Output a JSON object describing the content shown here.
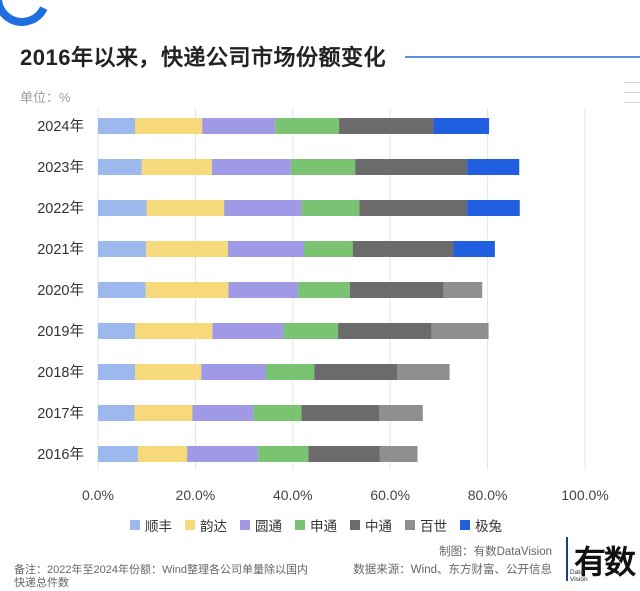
{
  "header": {
    "title": "2016年以来，快递公司市场份额变化",
    "unit": "单位：%"
  },
  "footer": {
    "note": "备注：2022年至2024年份额：Wind整理各公司单量除以国内快递总件数",
    "credit": "制图：有数DataVision",
    "source": "数据来源：Wind、东方财富、公开信息"
  },
  "logo": {
    "text": "有数",
    "sub_line1": "Data",
    "sub_line2": "Vision"
  },
  "colors": {
    "顺丰": "#9db8ec",
    "韵达": "#f5d97a",
    "圆通": "#a09ae6",
    "申通": "#79c372",
    "中通": "#6b6b6b",
    "百世": "#8f8f8f",
    "极兔": "#1f5fe0",
    "title_line": "#5d8fe0",
    "corner_arc": "#1f6fe0"
  },
  "chart_data": {
    "type": "bar",
    "orientation": "horizontal",
    "stacked": true,
    "title": "2016年以来，快递公司市场份额变化",
    "unit": "单位：%",
    "categories": [
      "2024年",
      "2023年",
      "2022年",
      "2021年",
      "2020年",
      "2019年",
      "2018年",
      "2017年",
      "2016年"
    ],
    "xlim": [
      0,
      100
    ],
    "x_ticks": [
      "0.0%",
      "20.0%",
      "40.0%",
      "60.0%",
      "80.0%",
      "100.0%"
    ],
    "grid": true,
    "legend_position": "bottom",
    "series": [
      {
        "name": "顺丰",
        "values": [
          7.6,
          9.0,
          10.0,
          9.9,
          9.8,
          7.6,
          7.6,
          7.5,
          8.2
        ]
      },
      {
        "name": "韵达",
        "values": [
          13.8,
          14.4,
          15.9,
          16.8,
          17.0,
          15.9,
          13.6,
          11.9,
          10.1
        ]
      },
      {
        "name": "圆通",
        "values": [
          15.0,
          16.2,
          15.9,
          15.6,
          14.3,
          14.6,
          13.3,
          12.5,
          14.6
        ]
      },
      {
        "name": "申通",
        "values": [
          13.1,
          13.2,
          11.9,
          10.0,
          10.6,
          11.2,
          9.9,
          9.9,
          10.3
        ]
      },
      {
        "name": "中通",
        "values": [
          19.4,
          23.0,
          22.1,
          20.7,
          19.3,
          19.2,
          17.0,
          15.9,
          14.6
        ]
      },
      {
        "name": "百世",
        "values": [
          0,
          0,
          0,
          0,
          7.9,
          11.7,
          10.8,
          9.0,
          7.8
        ]
      },
      {
        "name": "极兔",
        "values": [
          11.4,
          10.7,
          10.8,
          8.5,
          0,
          0,
          0,
          0,
          0
        ]
      }
    ]
  }
}
